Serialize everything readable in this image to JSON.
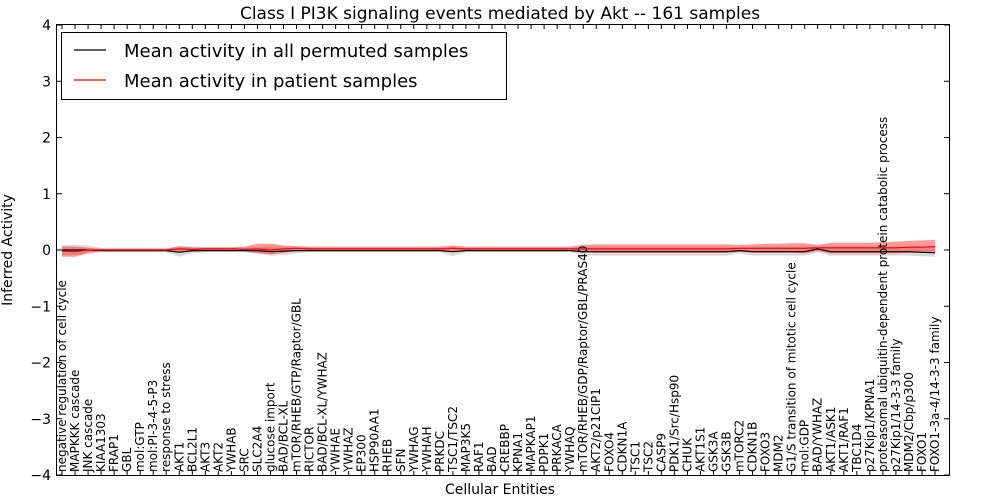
{
  "chart_data": {
    "type": "line",
    "title": "Class I PI3K signaling events mediated by Akt -- 161 samples",
    "xlabel": "Cellular Entities",
    "ylabel": "Inferred Activity",
    "ylim": [
      -4,
      4
    ],
    "yticks": [
      -4,
      -3,
      -2,
      -1,
      0,
      1,
      2,
      3,
      4
    ],
    "ytick_labels": [
      "−4",
      "−3",
      "−2",
      "−1",
      "0",
      "1",
      "2",
      "3",
      "4"
    ],
    "grid": false,
    "legend_position": "top-left",
    "categories": [
      "negative regulation of cell cycle",
      "MAPKKK cascade",
      "JNK cascade",
      "KIAA1303",
      "FRAP1",
      "GBL",
      "mol:GTP",
      "mol:PI-3-4-5-P3",
      "response to stress",
      "AKT1",
      "BCL2L1",
      "AKT3",
      "AKT2",
      "YWHAB",
      "SRC",
      "SLC2A4",
      "glucose import",
      "BAD/BCL-XL",
      "mTOR/RHEB/GTP/Raptor/GBL",
      "RICTOR",
      "BAD/BCL-XL/YWHAZ",
      "YWHAE",
      "YWHAZ",
      "EP300",
      "HSP90AA1",
      "RHEB",
      "SFN",
      "YWHAG",
      "YWHAH",
      "PRKDC",
      "TSC1/TSC2",
      "MAP3K5",
      "RAF1",
      "BAD",
      "CREBBP",
      "KPNA1",
      "MAPKAP1",
      "PDPK1",
      "PRKACA",
      "YWHAQ",
      "mTOR/RHEB/GDP/Raptor/GBL/PRAS40",
      "AKT2/p21CIP1",
      "FOXO4",
      "CDKN1A",
      "TSC1",
      "TSC2",
      "CASP9",
      "PDK1/Src/Hsp90",
      "CHUK",
      "AKT1S1",
      "GSK3A",
      "GSK3B",
      "mTORC2",
      "CDKN1B",
      "FOXO3",
      "MDM2",
      "G1/S transition of mitotic cell cycle",
      "mol:GDP",
      "BAD/YWHAZ",
      "AKT1/ASK1",
      "AKT1/RAF1",
      "TBC1D4",
      "p27Kip1/KPNA1",
      "proteasomal ubiquitin-dependent protein catabolic process",
      "p27Kip1/14-3-3 family",
      "MDM2/Cbp/p300",
      "FOXO1",
      "FOXO1-3a-4/14-3-3 family"
    ],
    "series": [
      {
        "name": "Mean activity in all permuted samples",
        "color": "#000000",
        "values": [
          0.0,
          0.0,
          0.0,
          -0.01,
          -0.01,
          -0.01,
          -0.01,
          -0.01,
          -0.01,
          -0.04,
          -0.01,
          -0.01,
          -0.01,
          -0.01,
          -0.01,
          -0.01,
          -0.03,
          -0.02,
          -0.01,
          -0.01,
          -0.01,
          -0.01,
          -0.01,
          -0.01,
          -0.01,
          -0.01,
          -0.01,
          -0.01,
          -0.01,
          -0.01,
          -0.03,
          -0.01,
          -0.01,
          -0.01,
          -0.01,
          -0.01,
          -0.01,
          -0.01,
          -0.01,
          -0.01,
          -0.03,
          -0.03,
          -0.03,
          -0.03,
          -0.03,
          -0.03,
          -0.03,
          -0.03,
          -0.03,
          -0.03,
          -0.03,
          -0.03,
          -0.01,
          -0.03,
          -0.03,
          -0.03,
          -0.03,
          -0.03,
          0.02,
          -0.03,
          -0.03,
          -0.03,
          -0.03,
          -0.03,
          -0.03,
          -0.03,
          -0.04,
          -0.05
        ],
        "band_lower": [
          -0.09,
          -0.09,
          -0.08,
          -0.04,
          -0.04,
          -0.04,
          -0.04,
          -0.04,
          -0.04,
          -0.12,
          -0.06,
          -0.04,
          -0.04,
          -0.04,
          -0.04,
          -0.06,
          -0.1,
          -0.09,
          -0.06,
          -0.04,
          -0.04,
          -0.04,
          -0.04,
          -0.04,
          -0.04,
          -0.04,
          -0.04,
          -0.04,
          -0.04,
          -0.04,
          -0.11,
          -0.04,
          -0.04,
          -0.04,
          -0.04,
          -0.04,
          -0.04,
          -0.04,
          -0.04,
          -0.04,
          -0.09,
          -0.1,
          -0.1,
          -0.1,
          -0.1,
          -0.1,
          -0.1,
          -0.1,
          -0.1,
          -0.1,
          -0.1,
          -0.1,
          -0.06,
          -0.1,
          -0.1,
          -0.1,
          -0.1,
          -0.1,
          -0.04,
          -0.1,
          -0.1,
          -0.1,
          -0.1,
          -0.1,
          -0.1,
          -0.1,
          -0.11,
          -0.12
        ],
        "band_upper": [
          0.09,
          0.09,
          0.08,
          0.04,
          0.04,
          0.04,
          0.04,
          0.04,
          0.04,
          0.06,
          0.05,
          0.04,
          0.04,
          0.04,
          0.04,
          0.05,
          0.06,
          0.06,
          0.05,
          0.04,
          0.04,
          0.04,
          0.04,
          0.04,
          0.04,
          0.04,
          0.04,
          0.04,
          0.04,
          0.04,
          0.06,
          0.04,
          0.04,
          0.04,
          0.04,
          0.04,
          0.04,
          0.04,
          0.04,
          0.04,
          0.06,
          0.06,
          0.06,
          0.06,
          0.06,
          0.06,
          0.06,
          0.06,
          0.06,
          0.06,
          0.06,
          0.06,
          0.05,
          0.06,
          0.06,
          0.06,
          0.06,
          0.06,
          0.07,
          0.06,
          0.06,
          0.06,
          0.06,
          0.06,
          0.06,
          0.06,
          0.06,
          0.06
        ]
      },
      {
        "name": "Mean activity in patient samples",
        "color": "#ff0000",
        "values": [
          -0.02,
          -0.03,
          0.0,
          0.0,
          0.0,
          0.0,
          0.0,
          0.0,
          0.0,
          0.02,
          0.01,
          0.02,
          0.02,
          0.02,
          0.01,
          0.02,
          0.0,
          0.02,
          0.03,
          0.02,
          0.02,
          0.02,
          0.02,
          0.02,
          0.02,
          0.02,
          0.02,
          0.02,
          0.02,
          0.02,
          0.03,
          0.02,
          0.02,
          0.02,
          0.02,
          0.02,
          0.02,
          0.02,
          0.02,
          0.02,
          0.02,
          0.02,
          0.02,
          0.02,
          0.02,
          0.02,
          0.02,
          0.02,
          0.02,
          0.02,
          0.02,
          0.02,
          0.03,
          0.03,
          0.03,
          0.03,
          0.03,
          0.03,
          0.04,
          0.04,
          0.04,
          0.04,
          0.04,
          0.04,
          0.04,
          0.05,
          0.05,
          0.06
        ],
        "band_lower": [
          -0.12,
          -0.12,
          -0.05,
          -0.02,
          -0.02,
          -0.02,
          -0.02,
          -0.02,
          -0.02,
          -0.04,
          -0.03,
          -0.02,
          -0.01,
          -0.01,
          -0.02,
          -0.06,
          -0.08,
          -0.05,
          -0.01,
          -0.01,
          -0.01,
          -0.01,
          -0.01,
          -0.01,
          -0.01,
          -0.01,
          -0.01,
          -0.01,
          -0.01,
          -0.01,
          -0.02,
          -0.01,
          -0.01,
          -0.01,
          -0.01,
          -0.01,
          -0.01,
          -0.01,
          -0.01,
          -0.01,
          -0.04,
          -0.05,
          -0.05,
          -0.05,
          -0.05,
          -0.05,
          -0.05,
          -0.05,
          -0.05,
          -0.05,
          -0.05,
          -0.05,
          -0.03,
          -0.05,
          -0.05,
          -0.05,
          -0.05,
          -0.06,
          -0.02,
          -0.06,
          -0.06,
          -0.06,
          -0.06,
          -0.06,
          -0.06,
          -0.05,
          -0.05,
          -0.05
        ],
        "band_upper": [
          0.06,
          0.06,
          0.04,
          0.02,
          0.02,
          0.02,
          0.02,
          0.02,
          0.02,
          0.07,
          0.05,
          0.05,
          0.05,
          0.05,
          0.06,
          0.11,
          0.11,
          0.08,
          0.07,
          0.06,
          0.06,
          0.06,
          0.06,
          0.06,
          0.06,
          0.06,
          0.06,
          0.06,
          0.06,
          0.06,
          0.08,
          0.06,
          0.06,
          0.06,
          0.06,
          0.06,
          0.06,
          0.06,
          0.06,
          0.06,
          0.09,
          0.1,
          0.1,
          0.1,
          0.1,
          0.1,
          0.1,
          0.1,
          0.1,
          0.1,
          0.1,
          0.1,
          0.09,
          0.1,
          0.11,
          0.11,
          0.12,
          0.12,
          0.09,
          0.13,
          0.13,
          0.13,
          0.13,
          0.14,
          0.15,
          0.16,
          0.17,
          0.18
        ]
      }
    ]
  }
}
